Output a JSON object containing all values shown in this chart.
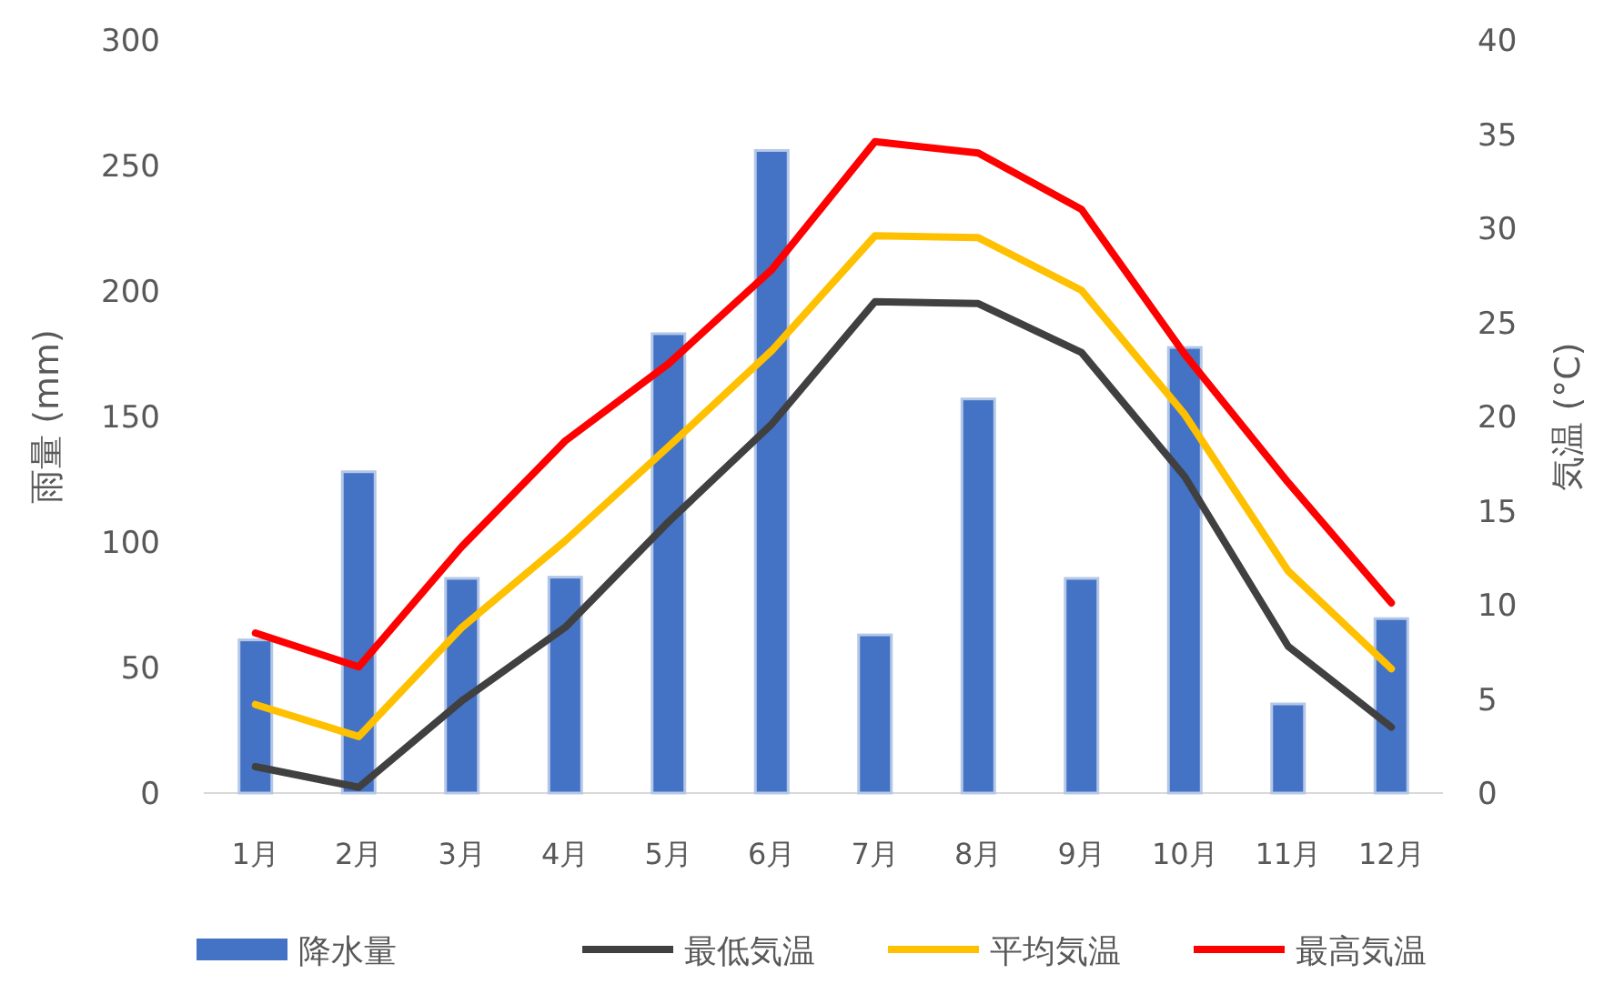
{
  "chart_data": {
    "type": "bar",
    "ylabel": "雨量 (mm)",
    "y2label": "気温 (°C)",
    "categories": [
      "1月",
      "2月",
      "3月",
      "4月",
      "5月",
      "6月",
      "7月",
      "8月",
      "9月",
      "10月",
      "11月",
      "12月"
    ],
    "ylim": [
      0,
      300
    ],
    "yticks": [
      0,
      50,
      100,
      150,
      200,
      250,
      300
    ],
    "y2lim": [
      0,
      40
    ],
    "y2ticks": [
      0,
      5,
      10,
      15,
      20,
      25,
      30,
      35,
      40
    ],
    "grid": false,
    "legend": "bottom",
    "series": [
      {
        "name": "降水量",
        "color": "#4472c4",
        "values": [
          61,
          128,
          85.5,
          86,
          183,
          256,
          63,
          157,
          85.5,
          177.5,
          35.5,
          69.5
        ]
      },
      {
        "name": "最低気温",
        "type": "line",
        "axis": "y2",
        "color": "#404040",
        "values": [
          1.4,
          0.3,
          4.9,
          8.8,
          14.4,
          19.6,
          26.1,
          26.0,
          23.4,
          16.8,
          7.8,
          3.5
        ]
      },
      {
        "name": "平均気温",
        "type": "line",
        "axis": "y2",
        "color": "#ffc000",
        "values": [
          4.7,
          3.0,
          8.8,
          13.4,
          18.4,
          23.5,
          29.6,
          29.5,
          26.7,
          20.1,
          11.8,
          6.6
        ]
      },
      {
        "name": "最高気温",
        "type": "line",
        "axis": "y2",
        "color": "#ff0000",
        "values": [
          8.5,
          6.7,
          13.1,
          18.7,
          22.8,
          27.8,
          34.6,
          34.0,
          31.0,
          23.3,
          16.5,
          10.1
        ]
      }
    ]
  }
}
